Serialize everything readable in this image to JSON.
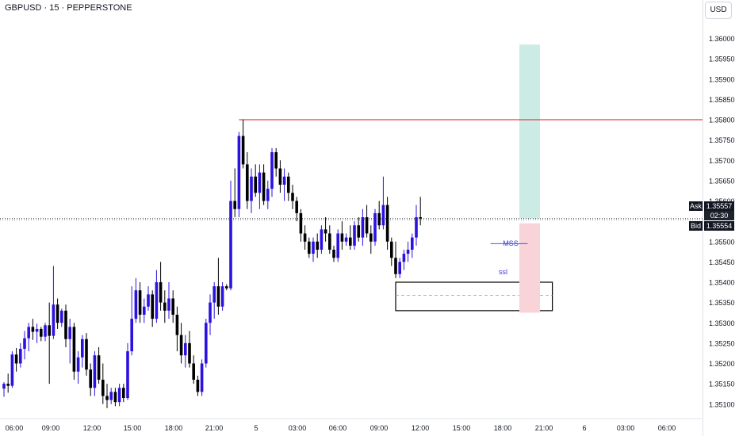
{
  "symbol_title": "GBPUSD · 15 · PEPPERSTONE",
  "currency_button": "USD",
  "quote": {
    "ask_label": "Ask",
    "ask_value": "1.35557",
    "countdown": "02:30",
    "bid_label": "Bid",
    "bid_value": "1.35554"
  },
  "colors": {
    "up_candle": "#2b12e0",
    "down_candle": "#000000",
    "resistance_line": "#e0404a",
    "take_profit_zone": "#cdebe5",
    "stop_loss_zone": "#f8d3d8",
    "annotation": "#3b3bd8"
  },
  "chart_data": {
    "type": "candlestick",
    "y_axis": {
      "range": [
        1.3508,
        1.3604
      ],
      "ticks": [
        "1.36000",
        "1.35950",
        "1.35900",
        "1.35850",
        "1.35800",
        "1.35750",
        "1.35700",
        "1.35650",
        "1.35600",
        "1.35500",
        "1.35450",
        "1.35400",
        "1.35350",
        "1.35300",
        "1.35250",
        "1.35200",
        "1.35150",
        "1.35100"
      ]
    },
    "x_axis": {
      "ticks": [
        "06:00",
        "09:00",
        "12:00",
        "15:00",
        "18:00",
        "21:00",
        "5",
        "03:00",
        "06:00",
        "09:00",
        "12:00",
        "15:00",
        "18:00",
        "21:00",
        "6",
        "03:00",
        "06:00"
      ]
    },
    "levels": [
      {
        "price": 1.358,
        "kind": "resistance"
      },
      {
        "price": 1.35557,
        "kind": "ask"
      },
      {
        "price": 1.35554,
        "kind": "bid"
      }
    ],
    "zones": [
      {
        "kind": "demand",
        "from_bar": 95,
        "to_bar": 133,
        "high": 1.354,
        "low": 1.3533,
        "mid": 1.35368
      },
      {
        "kind": "take_profit",
        "from_bar": 125,
        "to_bar": 130,
        "low": 1.35557,
        "high": 1.35985
      },
      {
        "kind": "stop_loss",
        "from_bar": 125,
        "to_bar": 130,
        "low": 1.35325,
        "high": 1.35545
      }
    ],
    "annotations": [
      {
        "text": "MSS",
        "bar": 121,
        "price": 1.3549
      },
      {
        "text": "ssl",
        "bar": 120,
        "price": 1.3542
      }
    ],
    "candles": [
      [
        1.35138,
        1.35154,
        1.35118,
        1.3515
      ],
      [
        1.3515,
        1.35175,
        1.35128,
        1.35145
      ],
      [
        1.35145,
        1.3523,
        1.3514,
        1.35222
      ],
      [
        1.35222,
        1.35238,
        1.3518,
        1.352
      ],
      [
        1.352,
        1.3525,
        1.3519,
        1.35236
      ],
      [
        1.35236,
        1.3528,
        1.3521,
        1.35262
      ],
      [
        1.35262,
        1.353,
        1.3523,
        1.3529
      ],
      [
        1.3529,
        1.3531,
        1.35258,
        1.35278
      ],
      [
        1.35278,
        1.35298,
        1.3525,
        1.35285
      ],
      [
        1.35285,
        1.3529,
        1.35255,
        1.35266
      ],
      [
        1.35266,
        1.353,
        1.35255,
        1.35294
      ],
      [
        1.35294,
        1.3535,
        1.3515,
        1.35268
      ],
      [
        1.35268,
        1.3544,
        1.3526,
        1.35345
      ],
      [
        1.35345,
        1.3536,
        1.35285,
        1.353
      ],
      [
        1.353,
        1.35335,
        1.3529,
        1.3533
      ],
      [
        1.3533,
        1.35345,
        1.3524,
        1.3526
      ],
      [
        1.3526,
        1.3531,
        1.352,
        1.3529
      ],
      [
        1.3529,
        1.353,
        1.3516,
        1.3518
      ],
      [
        1.3518,
        1.3523,
        1.3515,
        1.35215
      ],
      [
        1.35215,
        1.3527,
        1.3519,
        1.3526
      ],
      [
        1.3526,
        1.35275,
        1.3517,
        1.35185
      ],
      [
        1.35185,
        1.352,
        1.3512,
        1.3514
      ],
      [
        1.3514,
        1.3523,
        1.3512,
        1.3522
      ],
      [
        1.3522,
        1.3524,
        1.3515,
        1.3516
      ],
      [
        1.3516,
        1.352,
        1.351,
        1.3512
      ],
      [
        1.3512,
        1.3515,
        1.3509,
        1.3511
      ],
      [
        1.3511,
        1.3514,
        1.351,
        1.3513
      ],
      [
        1.3513,
        1.3514,
        1.35095,
        1.35105
      ],
      [
        1.35105,
        1.3515,
        1.35095,
        1.3514
      ],
      [
        1.3514,
        1.3515,
        1.35105,
        1.35115
      ],
      [
        1.35115,
        1.3525,
        1.3511,
        1.3523
      ],
      [
        1.3523,
        1.3539,
        1.3522,
        1.3531
      ],
      [
        1.3531,
        1.3541,
        1.353,
        1.3538
      ],
      [
        1.3538,
        1.354,
        1.353,
        1.3532
      ],
      [
        1.3532,
        1.3536,
        1.353,
        1.3534
      ],
      [
        1.3534,
        1.3539,
        1.3533,
        1.3537
      ],
      [
        1.3537,
        1.3538,
        1.3529,
        1.3531
      ],
      [
        1.3531,
        1.3543,
        1.353,
        1.354
      ],
      [
        1.354,
        1.3545,
        1.3533,
        1.3535
      ],
      [
        1.3535,
        1.3538,
        1.353,
        1.3533
      ],
      [
        1.3533,
        1.354,
        1.3531,
        1.3536
      ],
      [
        1.3536,
        1.3538,
        1.353,
        1.3532
      ],
      [
        1.3532,
        1.3534,
        1.3523,
        1.3527
      ],
      [
        1.3527,
        1.353,
        1.352,
        1.3522
      ],
      [
        1.3522,
        1.3527,
        1.3519,
        1.3525
      ],
      [
        1.3525,
        1.3528,
        1.3519,
        1.352
      ],
      [
        1.352,
        1.3522,
        1.3515,
        1.3516
      ],
      [
        1.3516,
        1.3517,
        1.3512,
        1.3513
      ],
      [
        1.3513,
        1.3521,
        1.3512,
        1.352
      ],
      [
        1.352,
        1.3531,
        1.3519,
        1.353
      ],
      [
        1.353,
        1.3537,
        1.3527,
        1.3535
      ],
      [
        1.3535,
        1.354,
        1.3531,
        1.3539
      ],
      [
        1.3539,
        1.3546,
        1.3532,
        1.3534
      ],
      [
        1.3534,
        1.354,
        1.3533,
        1.3539
      ],
      [
        1.3539,
        1.35395,
        1.3538,
        1.35385
      ],
      [
        1.35385,
        1.3565,
        1.3538,
        1.356
      ],
      [
        1.356,
        1.3568,
        1.3556,
        1.3558
      ],
      [
        1.3558,
        1.3577,
        1.3556,
        1.3576
      ],
      [
        1.3576,
        1.358,
        1.3568,
        1.3569
      ],
      [
        1.3569,
        1.3572,
        1.3558,
        1.356
      ],
      [
        1.356,
        1.3568,
        1.3557,
        1.3566
      ],
      [
        1.3566,
        1.3569,
        1.3561,
        1.3562
      ],
      [
        1.3562,
        1.3569,
        1.3558,
        1.3567
      ],
      [
        1.3567,
        1.3569,
        1.3559,
        1.356
      ],
      [
        1.356,
        1.3565,
        1.3558,
        1.3563
      ],
      [
        1.3563,
        1.3573,
        1.3561,
        1.3572
      ],
      [
        1.3572,
        1.3573,
        1.3566,
        1.3568
      ],
      [
        1.3568,
        1.357,
        1.3562,
        1.3564
      ],
      [
        1.3564,
        1.3568,
        1.356,
        1.3566
      ],
      [
        1.3566,
        1.3567,
        1.356,
        1.3562
      ],
      [
        1.3562,
        1.3564,
        1.3558,
        1.356
      ],
      [
        1.356,
        1.3561,
        1.3555,
        1.3557
      ],
      [
        1.3557,
        1.3558,
        1.355,
        1.3552
      ],
      [
        1.3552,
        1.3554,
        1.3548,
        1.355
      ],
      [
        1.355,
        1.3551,
        1.3546,
        1.3547
      ],
      [
        1.3547,
        1.3551,
        1.3545,
        1.355
      ],
      [
        1.355,
        1.3552,
        1.3546,
        1.3548
      ],
      [
        1.3548,
        1.3554,
        1.3547,
        1.3553
      ],
      [
        1.3553,
        1.3556,
        1.355,
        1.3552
      ],
      [
        1.3552,
        1.3554,
        1.3547,
        1.3548
      ],
      [
        1.3548,
        1.3549,
        1.3545,
        1.3546
      ],
      [
        1.3546,
        1.3553,
        1.3545,
        1.3552
      ],
      [
        1.3552,
        1.3555,
        1.3548,
        1.355
      ],
      [
        1.355,
        1.3552,
        1.3549,
        1.3551
      ],
      [
        1.3551,
        1.3554,
        1.3548,
        1.3549
      ],
      [
        1.3549,
        1.3555,
        1.3548,
        1.3554
      ],
      [
        1.3554,
        1.3556,
        1.355,
        1.3551
      ],
      [
        1.3551,
        1.3558,
        1.3549,
        1.3556
      ],
      [
        1.3556,
        1.3559,
        1.3551,
        1.3552
      ],
      [
        1.3552,
        1.3554,
        1.3547,
        1.355
      ],
      [
        1.355,
        1.3558,
        1.3549,
        1.3557
      ],
      [
        1.3557,
        1.356,
        1.3553,
        1.3554
      ],
      [
        1.3554,
        1.3566,
        1.3553,
        1.3559
      ],
      [
        1.3559,
        1.3561,
        1.3548,
        1.355
      ],
      [
        1.355,
        1.3551,
        1.3544,
        1.3546
      ],
      [
        1.3546,
        1.355,
        1.3541,
        1.3542
      ],
      [
        1.3542,
        1.3546,
        1.3541,
        1.3545
      ],
      [
        1.3545,
        1.3548,
        1.3543,
        1.3547
      ],
      [
        1.3547,
        1.355,
        1.3545,
        1.3548
      ],
      [
        1.3548,
        1.3552,
        1.3546,
        1.3551
      ],
      [
        1.3551,
        1.3559,
        1.3549,
        1.3556
      ],
      [
        1.3556,
        1.3561,
        1.3554,
        1.35557
      ]
    ]
  }
}
